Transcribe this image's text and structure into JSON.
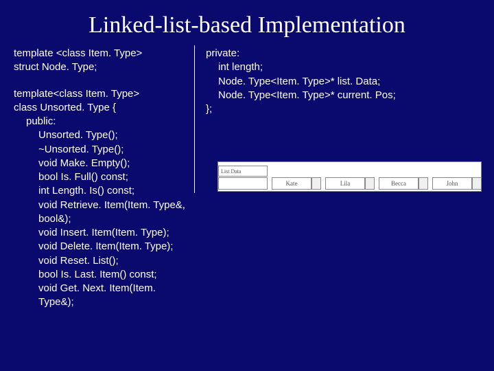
{
  "title": "Linked-list-based Implementation",
  "left": {
    "l1": "template <class Item. Type>",
    "l2": "struct Node. Type;",
    "l3": "template<class Item. Type>",
    "l4": "class Unsorted. Type {",
    "l5": "public:",
    "l6": "Unsorted. Type();",
    "l7": "~Unsorted. Type();",
    "l8": "void Make. Empty();",
    "l9": "bool Is. Full() const;",
    "l10": "int Length. Is() const;",
    "l11": "void Retrieve. Item(Item. Type&, bool&);",
    "l12": "void Insert. Item(Item. Type);",
    "l13": "void Delete. Item(Item. Type);",
    "l14": "void Reset. List();",
    "l15": "bool Is. Last. Item() const;",
    "l16": "void Get. Next. Item(Item. Type&);"
  },
  "right": {
    "r1": "private:",
    "r2": "int length;",
    "r3": "Node. Type<Item. Type>* list. Data;",
    "r4": "Node. Type<Item. Type>* current. Pos;",
    "r5": "};"
  },
  "diagram": {
    "header": "List Data",
    "nodes": [
      "Kate",
      "Lila",
      "Becca",
      "John"
    ],
    "colors": {
      "bg": "#ffffff",
      "border": "#888888",
      "text": "#555555"
    }
  },
  "colors": {
    "background": "#0a0a6e",
    "text": "#ffffff"
  }
}
